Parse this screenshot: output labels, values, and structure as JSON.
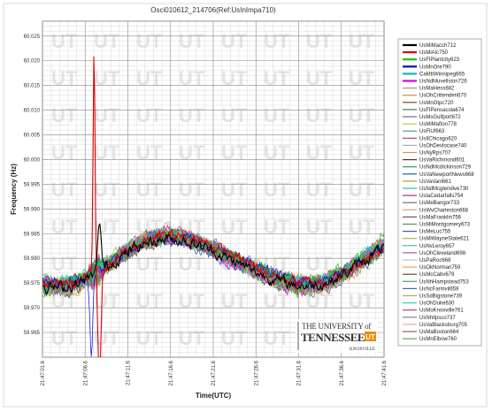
{
  "chart_data": {
    "type": "line",
    "title": "Osci010612_214706(Ref:UsInImpa710)",
    "xlabel": "Time(UTC)",
    "ylabel": "Frequency (Hz)",
    "ylim": [
      59.96,
      60.028
    ],
    "y_ticks": [
      60.025,
      60.02,
      60.015,
      60.01,
      60.005,
      60.0,
      59.995,
      59.99,
      59.985,
      59.98,
      59.975,
      59.97,
      59.965
    ],
    "x_ticks": [
      "21:47:01.6",
      "21:47:06.6",
      "21:47:11.6",
      "21:47:16.6",
      "21:47:21.6",
      "21:47:26.6",
      "21:47:31.6",
      "21:47:36.6",
      "21:47:41.6"
    ],
    "grid": true,
    "legend_position": "right",
    "series": [
      {
        "name": "UsMiMacch712",
        "color": "#000000"
      },
      {
        "name": "UsMiAlc750",
        "color": "#e00000"
      },
      {
        "name": "UsFlPlantcity623",
        "color": "#22c000"
      },
      {
        "name": "UsMnOre790",
        "color": "#0000e0"
      },
      {
        "name": "CaMbWinnipeg665",
        "color": "#00c0c0"
      },
      {
        "name": "UsNdMuvellston726",
        "color": "#e000e0"
      },
      {
        "name": "UsMaHess682",
        "color": "#999999"
      },
      {
        "name": "UsOhCrittenden670",
        "color": "#c89060"
      },
      {
        "name": "UsMnOtpc720",
        "color": "#804040"
      },
      {
        "name": "UsFlPensacola674",
        "color": "#408040"
      },
      {
        "name": "UsMsGulfport672",
        "color": "#6060c0"
      },
      {
        "name": "UsMiMafton778",
        "color": "#c0c040"
      },
      {
        "name": "UsFlUf663",
        "color": "#40a0a0"
      },
      {
        "name": "UsIlChicago620",
        "color": "#a040a0"
      },
      {
        "name": "UsOhDevlocase740",
        "color": "#b0b0b0"
      },
      {
        "name": "UsNyRps707",
        "color": "#e09040"
      },
      {
        "name": "UsVaRichmond601",
        "color": "#603020"
      },
      {
        "name": "UsNdMcdickinson729",
        "color": "#20a060"
      },
      {
        "name": "UsVaNewportNews668",
        "color": "#2060a0"
      },
      {
        "name": "UsVaVanl661",
        "color": "#a0a020"
      },
      {
        "name": "UsNdMcglendive730",
        "color": "#20c0a0"
      },
      {
        "name": "UsIaCedarfalls754",
        "color": "#c02080"
      },
      {
        "name": "UsMeBangor733",
        "color": "#707070"
      },
      {
        "name": "UsWvCharleston668",
        "color": "#d0a080"
      },
      {
        "name": "UsMaFranklin756",
        "color": "#805050"
      },
      {
        "name": "UsMiMontgomery673",
        "color": "#509050"
      },
      {
        "name": "UsMeLuc755",
        "color": "#5050b0"
      },
      {
        "name": "UsMiWayneState621",
        "color": "#b0b050"
      },
      {
        "name": "UsNvLeroy657",
        "color": "#50b0b0"
      },
      {
        "name": "UsOhCleveland698",
        "color": "#b050b0"
      },
      {
        "name": "UsPaRoc668",
        "color": "#c0c0c0"
      },
      {
        "name": "UsOkNorman759",
        "color": "#f0a050"
      },
      {
        "name": "UsMcCabv679",
        "color": "#704030"
      },
      {
        "name": "UsNhHampstead753",
        "color": "#30b070"
      },
      {
        "name": "UsNcFarmvil659",
        "color": "#3070b0"
      },
      {
        "name": "UsSdBigstone739",
        "color": "#b0b030"
      },
      {
        "name": "UsOhDuke630",
        "color": "#30d0b0"
      },
      {
        "name": "UsMoKnoxville761",
        "color": "#d03090"
      },
      {
        "name": "UsNhIlpsco737",
        "color": "#808080"
      },
      {
        "name": "UsVaBlacksburg705",
        "color": "#e0b090"
      },
      {
        "name": "UsMaBoston664",
        "color": "#906060"
      },
      {
        "name": "UsMnElbow760",
        "color": "#60a060"
      }
    ]
  },
  "watermark": "UT",
  "logo": {
    "line1": "THE UNIVERSITY of",
    "line2": "TENNESSEE",
    "line3": "KNOXVILLE",
    "badge": "UT"
  }
}
